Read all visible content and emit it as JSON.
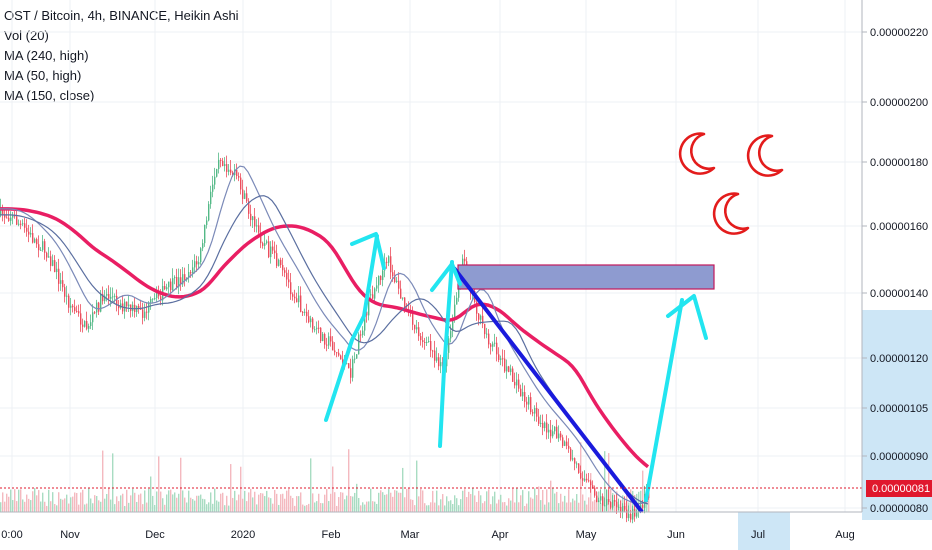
{
  "legend": {
    "title": "OST / Bitcoin, 4h, BINANCE, Heikin Ashi",
    "indicators": [
      "Vol (20)",
      "MA (240, high)",
      "MA (50, high)",
      "MA (150, close)"
    ]
  },
  "colors": {
    "up": "#53b987",
    "down": "#eb4d5c",
    "ma240": "#e91e63",
    "ma50": "#7b8ab8",
    "ma150": "#5b6fa0",
    "trend_line": "#1a1adc",
    "arrow": "#22e5f0",
    "zone_fill": "#8e9bd0",
    "zone_stroke": "#c2185b",
    "moon": "#e31c1c",
    "price_tag": "#e0182d"
  },
  "chart_data": {
    "type": "candlestick",
    "title": "OST / Bitcoin, 4h, BINANCE, Heikin Ashi",
    "price_axis": {
      "ticks": [
        "0.00000220",
        "0.00000200",
        "0.00000180",
        "0.00000160",
        "0.00000140",
        "0.00000120",
        "0.00000105",
        "0.00000090",
        "0.00000080"
      ],
      "scale": "log",
      "current_price": "0.00000081"
    },
    "time_axis": {
      "ticks": [
        "0:00",
        "Nov",
        "Dec",
        "2020",
        "Feb",
        "Mar",
        "Apr",
        "May",
        "Jun",
        "Jul",
        "Aug"
      ]
    },
    "moving_averages": [
      "MA (240, high)",
      "MA (50, high)",
      "MA (150, close)"
    ],
    "annotations": [
      "resistance zone 0.00000140–0.00000150",
      "descending trend line",
      "upward arrows",
      "three crescent moons"
    ],
    "price_path": [
      [
        "2019-10-01",
        155
      ],
      [
        "2019-10-08",
        148
      ],
      [
        "2019-10-15",
        142
      ],
      [
        "2019-10-22",
        128
      ],
      [
        "2019-10-29",
        120
      ],
      [
        "2019-11-05",
        130
      ],
      [
        "2019-11-12",
        126
      ],
      [
        "2019-11-19",
        124
      ],
      [
        "2019-11-26",
        130
      ],
      [
        "2019-12-03",
        134
      ],
      [
        "2019-12-10",
        140
      ],
      [
        "2019-12-17",
        178
      ],
      [
        "2019-12-24",
        168
      ],
      [
        "2019-12-31",
        150
      ],
      [
        "2020-01-07",
        140
      ],
      [
        "2020-01-14",
        130
      ],
      [
        "2020-01-21",
        120
      ],
      [
        "2020-01-28",
        116
      ],
      [
        "2020-02-04",
        108
      ],
      [
        "2020-02-11",
        128
      ],
      [
        "2020-02-18",
        140
      ],
      [
        "2020-02-25",
        124
      ],
      [
        "2020-03-03",
        116
      ],
      [
        "2020-03-10",
        110
      ],
      [
        "2020-03-17",
        140
      ],
      [
        "2020-03-24",
        120
      ],
      [
        "2020-03-31",
        112
      ],
      [
        "2020-04-07",
        104
      ],
      [
        "2020-04-14",
        98
      ],
      [
        "2020-04-21",
        94
      ],
      [
        "2020-04-28",
        88
      ],
      [
        "2020-05-05",
        82
      ],
      [
        "2020-05-12",
        80
      ],
      [
        "2020-05-19",
        79
      ],
      [
        "2020-05-24",
        82
      ]
    ]
  }
}
